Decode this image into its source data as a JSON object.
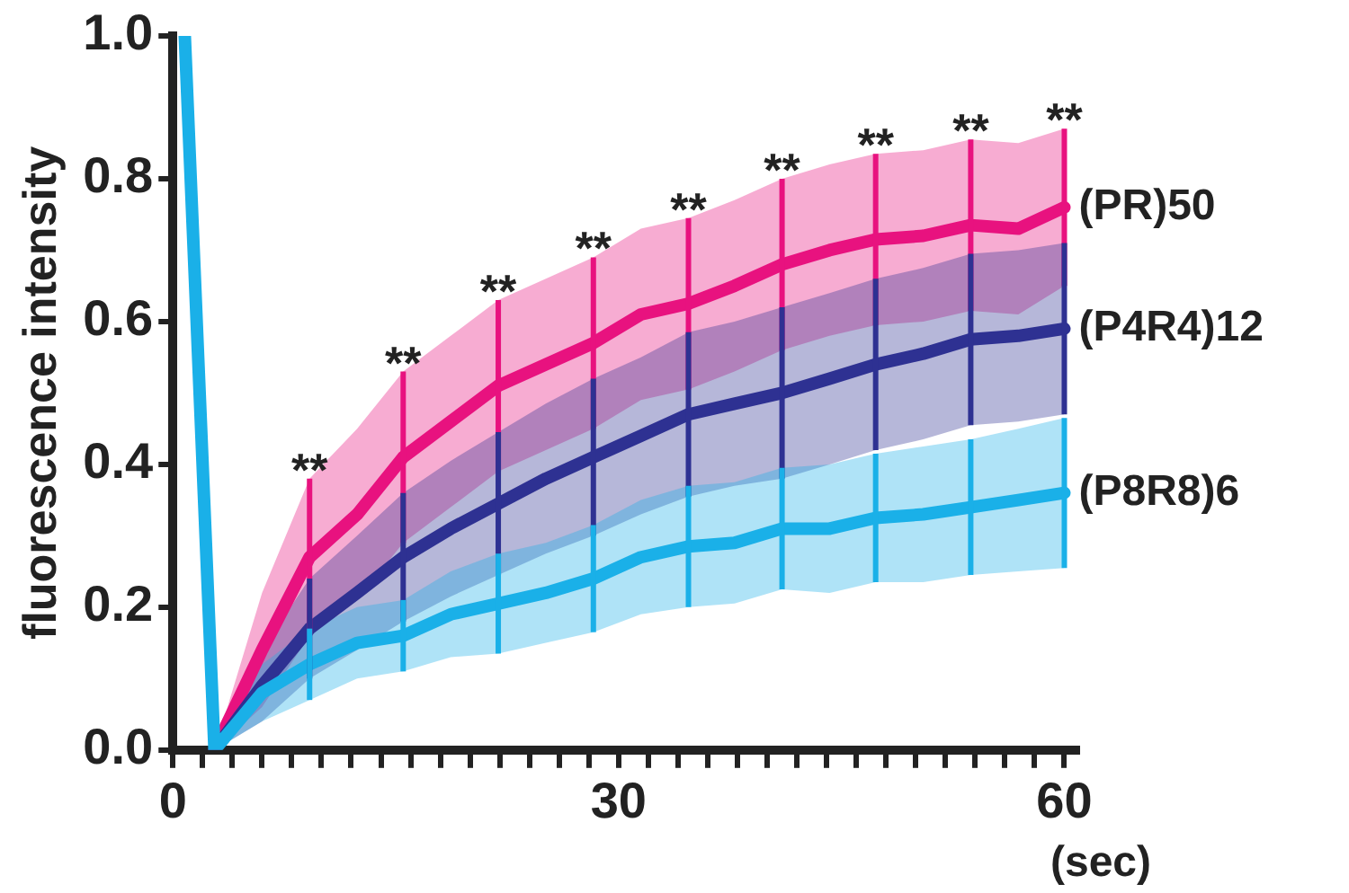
{
  "chart_data": {
    "type": "line",
    "xlabel": "(sec)",
    "ylabel": "fluorescence intensity",
    "xlim": [
      0,
      61
    ],
    "ylim": [
      0,
      1
    ],
    "xticks": [
      0,
      {
        "value": 2,
        "label": null
      },
      {
        "value": 4,
        "label": null
      },
      {
        "value": 6,
        "label": null
      },
      {
        "value": 8,
        "label": null
      },
      {
        "value": 10,
        "label": null
      },
      {
        "value": 12,
        "label": null
      },
      {
        "value": 14,
        "label": null
      },
      {
        "value": 16,
        "label": null
      },
      {
        "value": 18,
        "label": null
      },
      {
        "value": 20,
        "label": null
      },
      {
        "value": 22,
        "label": null
      },
      {
        "value": 24,
        "label": null
      },
      {
        "value": 26,
        "label": null
      },
      {
        "value": 28,
        "label": null
      },
      30,
      {
        "value": 32,
        "label": null
      },
      {
        "value": 34,
        "label": null
      },
      {
        "value": 36,
        "label": null
      },
      {
        "value": 38,
        "label": null
      },
      {
        "value": 40,
        "label": null
      },
      {
        "value": 42,
        "label": null
      },
      {
        "value": 44,
        "label": null
      },
      {
        "value": 46,
        "label": null
      },
      {
        "value": 48,
        "label": null
      },
      {
        "value": 50,
        "label": null
      },
      {
        "value": 52,
        "label": null
      },
      {
        "value": 54,
        "label": null
      },
      {
        "value": 56,
        "label": null
      },
      {
        "value": 58,
        "label": null
      },
      60
    ],
    "yticks": [
      {
        "value": 0,
        "label": "0.0"
      },
      0.2,
      0.4,
      0.6,
      0.8,
      {
        "value": 1,
        "label": "1.0"
      }
    ],
    "x": [
      0.8,
      2.8,
      6,
      9.2,
      12.4,
      15.5,
      18.7,
      21.9,
      25.1,
      28.3,
      31.5,
      34.7,
      37.8,
      41,
      44.2,
      47.3,
      50.5,
      53.7,
      56.9,
      60
    ],
    "marker": "none",
    "line_style": "solid",
    "series": [
      {
        "name": "(PR)50",
        "color": "#e8127f",
        "values": [
          null,
          0,
          0.14,
          0.27,
          0.33,
          0.41,
          0.46,
          0.51,
          0.54,
          0.57,
          0.61,
          0.625,
          0.65,
          0.68,
          0.7,
          0.715,
          0.72,
          0.735,
          0.73,
          0.76
        ],
        "errors": [
          null,
          null,
          null,
          0.11,
          null,
          0.12,
          null,
          0.12,
          null,
          0.12,
          null,
          0.12,
          null,
          0.12,
          null,
          0.12,
          null,
          0.12,
          null,
          0.11
        ],
        "lower": [
          null,
          0,
          0.06,
          0.16,
          0.21,
          0.29,
          0.34,
          0.39,
          0.42,
          0.45,
          0.49,
          0.505,
          0.53,
          0.56,
          0.58,
          0.595,
          0.6,
          0.615,
          0.61,
          0.65
        ],
        "upper": [
          null,
          0,
          0.22,
          0.38,
          0.45,
          0.53,
          0.58,
          0.63,
          0.66,
          0.69,
          0.73,
          0.745,
          0.77,
          0.8,
          0.82,
          0.835,
          0.84,
          0.855,
          0.85,
          0.87
        ]
      },
      {
        "name": "(P4R4)12",
        "color": "#2e3192",
        "values": [
          null,
          0,
          0.09,
          0.17,
          0.22,
          0.27,
          0.31,
          0.345,
          0.38,
          0.41,
          0.44,
          0.47,
          0.485,
          0.5,
          0.52,
          0.54,
          0.555,
          0.575,
          0.58,
          0.59
        ],
        "errors": [
          null,
          null,
          null,
          0.07,
          null,
          0.09,
          null,
          0.1,
          null,
          0.11,
          null,
          0.115,
          null,
          0.12,
          null,
          0.12,
          null,
          0.12,
          null,
          0.12
        ],
        "lower": [
          null,
          0,
          0.04,
          0.1,
          0.14,
          0.18,
          0.215,
          0.245,
          0.275,
          0.3,
          0.33,
          0.355,
          0.37,
          0.38,
          0.4,
          0.42,
          0.435,
          0.455,
          0.46,
          0.47
        ],
        "upper": [
          null,
          0,
          0.14,
          0.24,
          0.3,
          0.36,
          0.405,
          0.445,
          0.485,
          0.52,
          0.55,
          0.585,
          0.6,
          0.62,
          0.64,
          0.66,
          0.675,
          0.695,
          0.7,
          0.71
        ]
      },
      {
        "name": "(P8R8)6",
        "color": "#1ab0e8",
        "values": [
          1,
          0,
          0.08,
          0.12,
          0.15,
          0.16,
          0.19,
          0.205,
          0.22,
          0.24,
          0.27,
          0.285,
          0.29,
          0.31,
          0.31,
          0.325,
          0.33,
          0.34,
          0.35,
          0.36
        ],
        "errors": [
          null,
          null,
          null,
          0.05,
          null,
          0.05,
          null,
          0.07,
          null,
          0.075,
          null,
          0.085,
          null,
          0.085,
          null,
          0.09,
          null,
          0.095,
          null,
          0.105
        ],
        "lower": [
          null,
          0,
          0.04,
          0.07,
          0.1,
          0.11,
          0.13,
          0.135,
          0.15,
          0.165,
          0.19,
          0.2,
          0.205,
          0.225,
          0.22,
          0.235,
          0.235,
          0.245,
          0.25,
          0.255
        ],
        "upper": [
          null,
          0,
          0.12,
          0.17,
          0.2,
          0.21,
          0.25,
          0.275,
          0.29,
          0.315,
          0.35,
          0.37,
          0.375,
          0.395,
          0.4,
          0.415,
          0.425,
          0.435,
          0.45,
          0.465
        ]
      }
    ],
    "annotations": [
      {
        "text": "**",
        "x": 9.2,
        "y": 0.38
      },
      {
        "text": "**",
        "x": 15.5,
        "y": 0.53
      },
      {
        "text": "**",
        "x": 21.9,
        "y": 0.63
      },
      {
        "text": "**",
        "x": 28.3,
        "y": 0.69
      },
      {
        "text": "**",
        "x": 34.7,
        "y": 0.745
      },
      {
        "text": "**",
        "x": 41,
        "y": 0.8
      },
      {
        "text": "**",
        "x": 47.3,
        "y": 0.835
      },
      {
        "text": "**",
        "x": 53.7,
        "y": 0.855
      },
      {
        "text": "**",
        "x": 60,
        "y": 0.87
      }
    ]
  }
}
